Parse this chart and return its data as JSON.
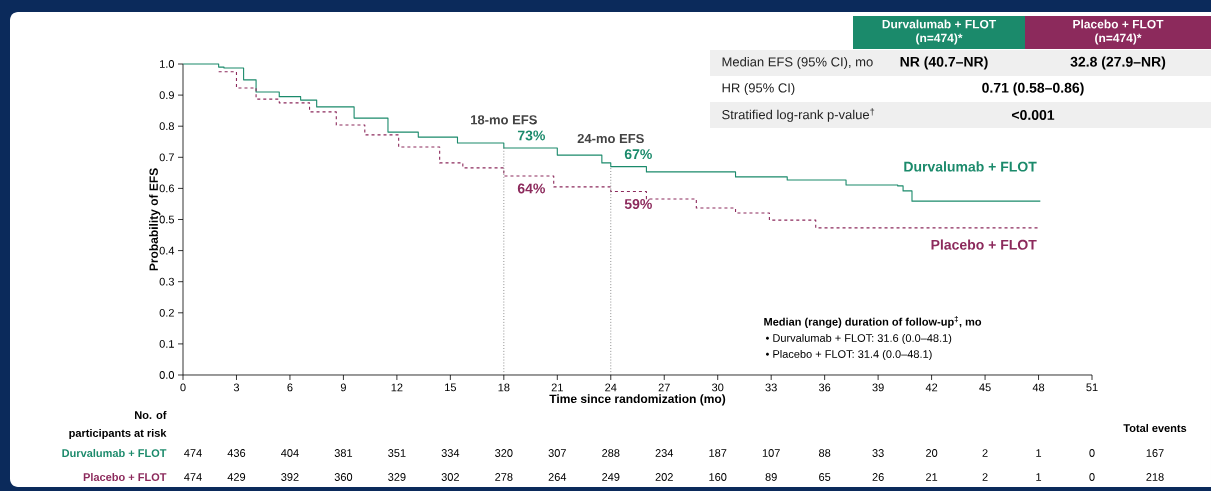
{
  "chart_data": {
    "type": "step",
    "xlabel": "Time since randomization (mo)",
    "ylabel": "Probability of EFS",
    "xlim": [
      0,
      51
    ],
    "ylim": [
      0,
      1.0
    ],
    "xticks": [
      0,
      3,
      6,
      9,
      12,
      15,
      18,
      21,
      24,
      27,
      30,
      33,
      36,
      39,
      42,
      45,
      48,
      51
    ],
    "yticks": [
      {
        "value": 0,
        "label": "0.0"
      },
      {
        "value": 0.1,
        "label": "0.1"
      },
      {
        "value": 0.2,
        "label": "0.2"
      },
      {
        "value": 0.3,
        "label": "0.3"
      },
      {
        "value": 0.4,
        "label": "0.4"
      },
      {
        "value": 0.5,
        "label": "0.5"
      },
      {
        "value": 0.6,
        "label": "0.6"
      },
      {
        "value": 0.7,
        "label": "0.7"
      },
      {
        "value": 0.8,
        "label": "0.8"
      },
      {
        "value": 0.9,
        "label": "0.9"
      },
      {
        "value": 1.0,
        "label": "1.0"
      }
    ],
    "series": [
      {
        "name": "Durvalumab + FLOT",
        "color": "#1b8a6b",
        "line_style": "solid",
        "x": [
          0,
          2,
          2.3,
          3.4,
          4.1,
          5.4,
          6.6,
          7.5,
          9.6,
          11.5,
          13.2,
          15.4,
          18,
          21,
          23.5,
          24,
          26,
          31,
          33.9,
          37.2,
          40.1,
          40.4,
          40.9,
          48.1
        ],
        "values": [
          1.0,
          0.99,
          0.987,
          0.949,
          0.91,
          0.895,
          0.884,
          0.862,
          0.826,
          0.781,
          0.765,
          0.746,
          0.73,
          0.707,
          0.682,
          0.67,
          0.653,
          0.637,
          0.627,
          0.611,
          0.608,
          0.592,
          0.559,
          0.559
        ]
      },
      {
        "name": "Placebo + FLOT",
        "color": "#8c2a5c",
        "line_style": "dashed",
        "x": [
          2,
          3.0,
          4.1,
          5.4,
          7.1,
          8.6,
          10.2,
          12.1,
          14.4,
          15.7,
          18,
          20.8,
          24,
          26,
          28.8,
          31,
          32.9,
          35.5,
          48.1
        ],
        "values": [
          0.975,
          0.923,
          0.887,
          0.875,
          0.846,
          0.804,
          0.772,
          0.733,
          0.682,
          0.666,
          0.64,
          0.605,
          0.59,
          0.566,
          0.537,
          0.521,
          0.498,
          0.473,
          0.473
        ]
      }
    ],
    "ref_lines": [
      {
        "axis": "x",
        "value": 18,
        "label": "18-mo EFS",
        "color": "#777777",
        "line_style": "dotted"
      },
      {
        "axis": "x",
        "value": 24,
        "label": "24-mo EFS",
        "color": "#777777",
        "line_style": "dotted"
      }
    ],
    "annotations": [
      "73%",
      "64%",
      "67%",
      "59%",
      "Median (range) duration of follow-up$^{‡}$, mo",
      "• Durvalumab + FLOT: 31.6 (0.0–48.1)",
      "• Placebo + FLOT: 31.4 (0.0–48.1)",
      "Durvalumab + FLOT",
      "(n=474)*",
      "Placebo + FLOT",
      "(n=474)*",
      "Median EFS (95% CI), mo",
      "NR (40.7–NR)",
      "32.8 (27.9–NR)",
      "HR (95% CI)",
      "0.71 (0.58–0.86)",
      "Stratified log-rank p-value$^{†}$",
      "<0.001",
      "No. of",
      "participants at risk",
      "Durvalumab + FLOT",
      "Placebo + FLOT",
      "Total events",
      "474",
      "436",
      "404",
      "381",
      "351",
      "334",
      "320",
      "307",
      "288",
      "234",
      "187",
      "107",
      "88",
      "33",
      "20",
      "2",
      "1",
      "0",
      "474",
      "429",
      "392",
      "360",
      "329",
      "302",
      "278",
      "264",
      "249",
      "202",
      "160",
      "89",
      "65",
      "26",
      "21",
      "2",
      "1",
      "0",
      "167",
      "218"
    ]
  }
}
